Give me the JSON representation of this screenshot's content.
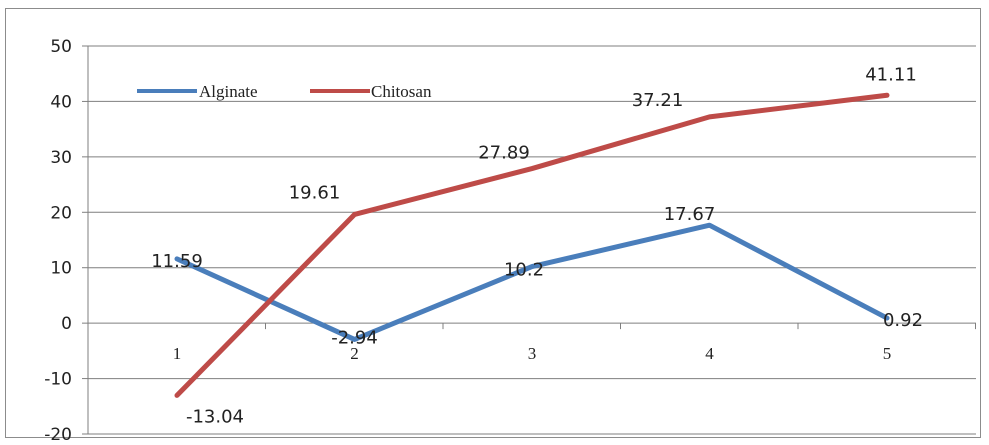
{
  "chart_data": {
    "type": "line",
    "categories": [
      "1",
      "2",
      "3",
      "4",
      "5"
    ],
    "series": [
      {
        "name": "Alginate",
        "color": "#4a7ebb",
        "values": [
          11.59,
          -2.94,
          10.2,
          17.67,
          0.92
        ],
        "labels": [
          "11.59",
          "-2.94",
          "10.2",
          "17.67",
          "0.92"
        ]
      },
      {
        "name": "Chitosan",
        "color": "#be4b48",
        "values": [
          -13.04,
          19.61,
          27.89,
          37.21,
          41.11
        ],
        "labels": [
          "-13.04",
          "19.61",
          "27.89",
          "37.21",
          "41.11"
        ]
      }
    ],
    "ylim": [
      -20,
      50
    ],
    "yticks": [
      "-20",
      "-10",
      "0",
      "10",
      "20",
      "30",
      "40",
      "50"
    ],
    "grid": true,
    "legend_position": "top-left"
  }
}
